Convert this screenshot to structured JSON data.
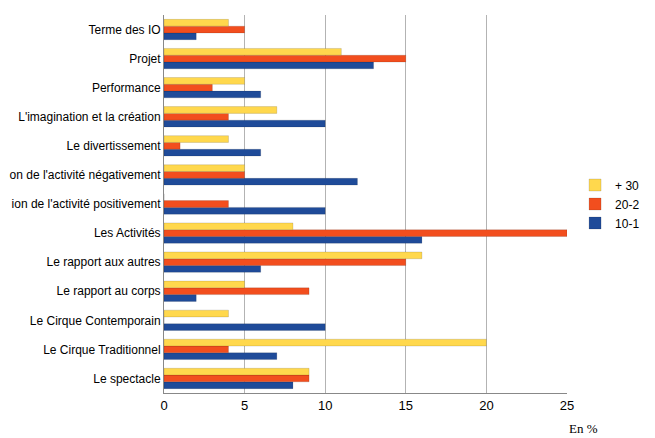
{
  "chart_data": {
    "type": "bar",
    "orientation": "horizontal",
    "x_label": "En %",
    "categories": [
      "Le spectacle",
      "Le Cirque Traditionnel",
      "Le Cirque Contemporain",
      "Le rapport au corps",
      "Le rapport aux autres",
      "Les Activités",
      "ion de l'activité positivement",
      "on de l'activité négativement",
      "Le divertissement",
      "L'imagination et la création",
      "Performance",
      "Projet",
      "Terme des IO"
    ],
    "series": [
      {
        "name": "10-1",
        "color": "#1f4b99",
        "values": [
          8,
          7,
          10,
          2,
          6,
          16,
          10,
          12,
          6,
          10,
          6,
          13,
          2
        ]
      },
      {
        "name": "20-2",
        "color": "#f24e1e",
        "values": [
          9,
          4,
          0,
          9,
          15,
          25,
          4,
          5,
          1,
          4,
          3,
          15,
          5
        ]
      },
      {
        "name": "+ 30",
        "color": "#ffd84d",
        "values": [
          9,
          20,
          4,
          5,
          16,
          8,
          0,
          5,
          4,
          7,
          5,
          11,
          4
        ]
      }
    ],
    "xlim": [
      0,
      25
    ],
    "xticks": [
      0,
      5,
      10,
      15,
      20,
      25
    ],
    "grid": true,
    "legend": "right"
  }
}
